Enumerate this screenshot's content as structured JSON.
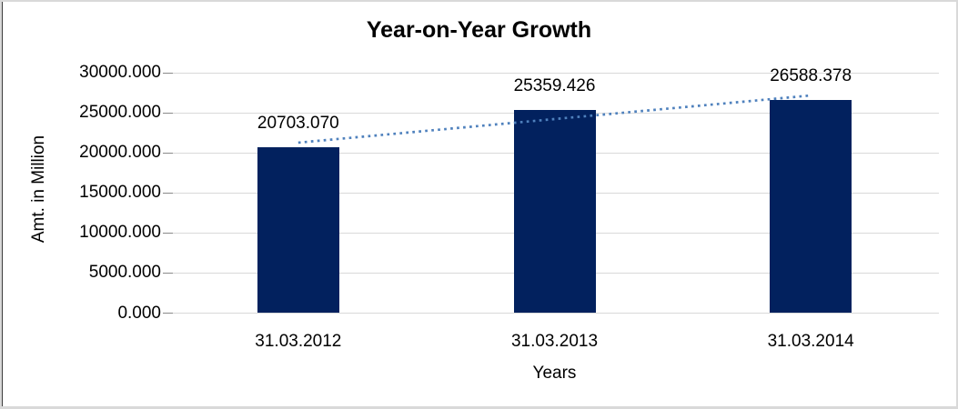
{
  "chart_data": {
    "type": "bar",
    "title": "Year-on-Year Growth",
    "xlabel": "Years",
    "ylabel": "Amt. in Million",
    "categories": [
      "31.03.2012",
      "31.03.2013",
      "31.03.2014"
    ],
    "values": [
      20703.07,
      25359.426,
      26588.378
    ],
    "data_labels": [
      "20703.070",
      "25359.426",
      "26588.378"
    ],
    "y_ticks": [
      "30000.000",
      "25000.000",
      "20000.000",
      "15000.000",
      "10000.000",
      "5000.000",
      "0.000"
    ],
    "ylim": [
      0,
      30000
    ],
    "grid": true,
    "legend": "none",
    "bar_color": "#02215e",
    "trendline": {
      "type": "linear",
      "style": "dotted",
      "color": "#4f81bd"
    },
    "gridline_color": "#d9d9d9",
    "tick_color": "#898989",
    "text_color": "#000000",
    "background": "#ffffff",
    "border_color": "#d9d9d9"
  }
}
